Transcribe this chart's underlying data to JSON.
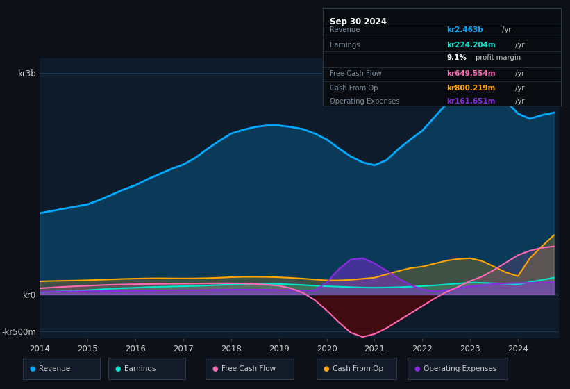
{
  "bg_color": "#0d1117",
  "plot_bg_color": "#0d1b2a",
  "grid_color": "#1a3a55",
  "revenue_color": "#00aaff",
  "earnings_color": "#00e5cc",
  "fcf_color": "#ff69b4",
  "cashop_color": "#ffa500",
  "opex_color": "#8a2be2",
  "years": [
    2014.0,
    2014.25,
    2014.5,
    2014.75,
    2015.0,
    2015.25,
    2015.5,
    2015.75,
    2016.0,
    2016.25,
    2016.5,
    2016.75,
    2017.0,
    2017.25,
    2017.5,
    2017.75,
    2018.0,
    2018.25,
    2018.5,
    2018.75,
    2019.0,
    2019.25,
    2019.5,
    2019.75,
    2020.0,
    2020.25,
    2020.5,
    2020.75,
    2021.0,
    2021.25,
    2021.5,
    2021.75,
    2022.0,
    2022.25,
    2022.5,
    2022.75,
    2023.0,
    2023.25,
    2023.5,
    2023.75,
    2024.0,
    2024.25,
    2024.5,
    2024.75
  ],
  "revenue": [
    1100,
    1130,
    1160,
    1190,
    1220,
    1280,
    1350,
    1420,
    1480,
    1560,
    1630,
    1700,
    1760,
    1850,
    1970,
    2080,
    2180,
    2230,
    2270,
    2290,
    2290,
    2270,
    2240,
    2180,
    2100,
    1980,
    1870,
    1790,
    1750,
    1820,
    1970,
    2100,
    2220,
    2400,
    2580,
    2760,
    2980,
    2880,
    2740,
    2620,
    2450,
    2380,
    2430,
    2463
  ],
  "earnings": [
    30,
    35,
    40,
    48,
    55,
    65,
    75,
    82,
    88,
    95,
    100,
    105,
    108,
    112,
    118,
    125,
    132,
    136,
    138,
    140,
    138,
    132,
    125,
    115,
    108,
    102,
    96,
    90,
    88,
    90,
    95,
    102,
    110,
    120,
    132,
    145,
    158,
    155,
    148,
    142,
    135,
    165,
    195,
    224
  ],
  "free_cash_flow": [
    80,
    90,
    100,
    108,
    115,
    122,
    128,
    132,
    135,
    138,
    140,
    142,
    143,
    145,
    147,
    148,
    148,
    145,
    138,
    128,
    115,
    80,
    20,
    -80,
    -220,
    -380,
    -520,
    -580,
    -540,
    -460,
    -360,
    -260,
    -160,
    -60,
    30,
    100,
    180,
    240,
    330,
    430,
    530,
    590,
    630,
    649
  ],
  "cash_from_op": [
    175,
    180,
    183,
    186,
    190,
    196,
    202,
    208,
    212,
    215,
    216,
    215,
    214,
    215,
    218,
    224,
    232,
    236,
    237,
    235,
    230,
    222,
    212,
    200,
    188,
    188,
    195,
    210,
    225,
    270,
    315,
    355,
    375,
    415,
    455,
    478,
    488,
    450,
    375,
    295,
    245,
    490,
    650,
    800
  ],
  "op_expenses": [
    35,
    36,
    37,
    38,
    40,
    42,
    44,
    46,
    48,
    50,
    52,
    53,
    54,
    55,
    57,
    59,
    61,
    62,
    61,
    59,
    57,
    55,
    52,
    50,
    160,
    340,
    470,
    490,
    420,
    320,
    215,
    125,
    62,
    38,
    55,
    82,
    105,
    122,
    138,
    148,
    152,
    155,
    158,
    161
  ],
  "ylim": [
    -600,
    3200
  ],
  "yticks": [
    -500,
    0,
    3000
  ],
  "ytick_labels": [
    "-kr500m",
    "kr0",
    "kr3b"
  ],
  "xticks": [
    2014,
    2015,
    2016,
    2017,
    2018,
    2019,
    2020,
    2021,
    2022,
    2023,
    2024
  ],
  "legend_items": [
    {
      "label": "Revenue",
      "color": "#00aaff"
    },
    {
      "label": "Earnings",
      "color": "#00e5cc"
    },
    {
      "label": "Free Cash Flow",
      "color": "#ff69b4"
    },
    {
      "label": "Cash From Op",
      "color": "#ffa500"
    },
    {
      "label": "Operating Expenses",
      "color": "#8a2be2"
    }
  ],
  "info_box": {
    "title": "Sep 30 2024",
    "rows": [
      {
        "label": "Revenue",
        "value": "kr2.463b",
        "unit": " /yr",
        "value_color": "#00aaff"
      },
      {
        "label": "Earnings",
        "value": "kr224.204m",
        "unit": " /yr",
        "value_color": "#00e5cc"
      },
      {
        "label": "",
        "value": "9.1%",
        "unit": " profit margin",
        "value_color": "#ffffff"
      },
      {
        "label": "Free Cash Flow",
        "value": "kr649.554m",
        "unit": " /yr",
        "value_color": "#ff69b4"
      },
      {
        "label": "Cash From Op",
        "value": "kr800.219m",
        "unit": " /yr",
        "value_color": "#ffa500"
      },
      {
        "label": "Operating Expenses",
        "value": "kr161.651m",
        "unit": " /yr",
        "value_color": "#8a2be2"
      }
    ]
  }
}
